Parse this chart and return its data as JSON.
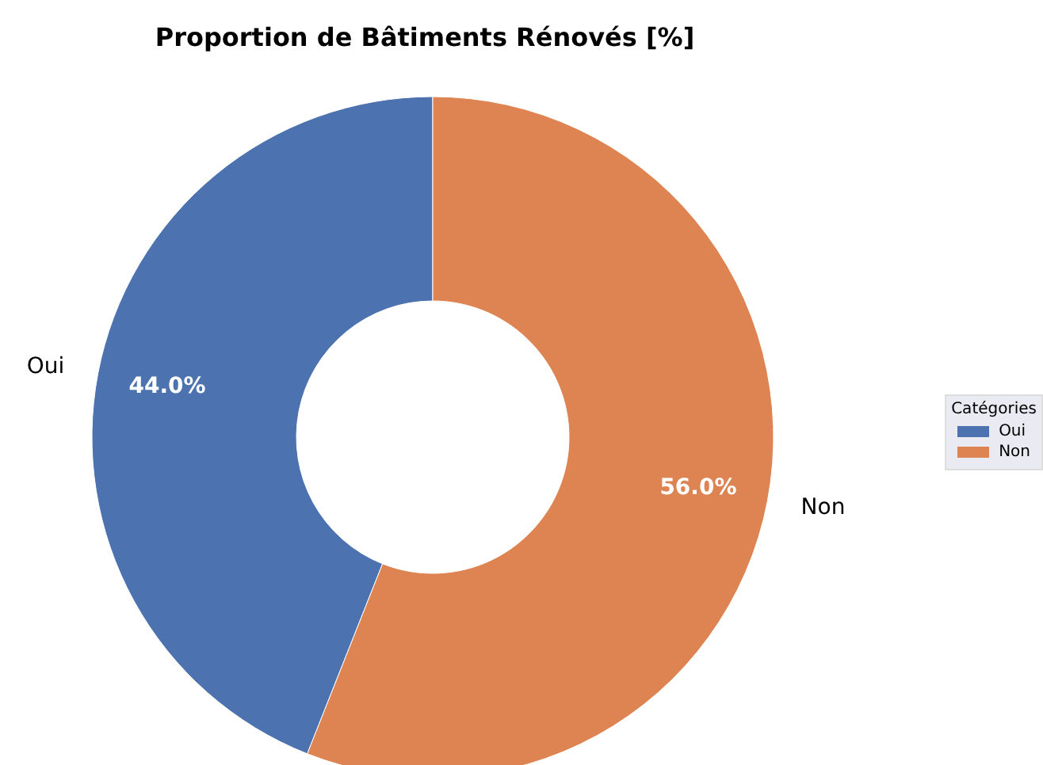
{
  "chart_data": {
    "type": "donut",
    "title": "Proportion de Bâtiments Rénovés [%]",
    "categories": [
      "Oui",
      "Non"
    ],
    "values": [
      44,
      56
    ],
    "colors": [
      "#4c72b0",
      "#dd8452"
    ],
    "value_labels": [
      "44.0%",
      "56.0%"
    ],
    "legend": "right",
    "legend_title": "Catégories"
  }
}
